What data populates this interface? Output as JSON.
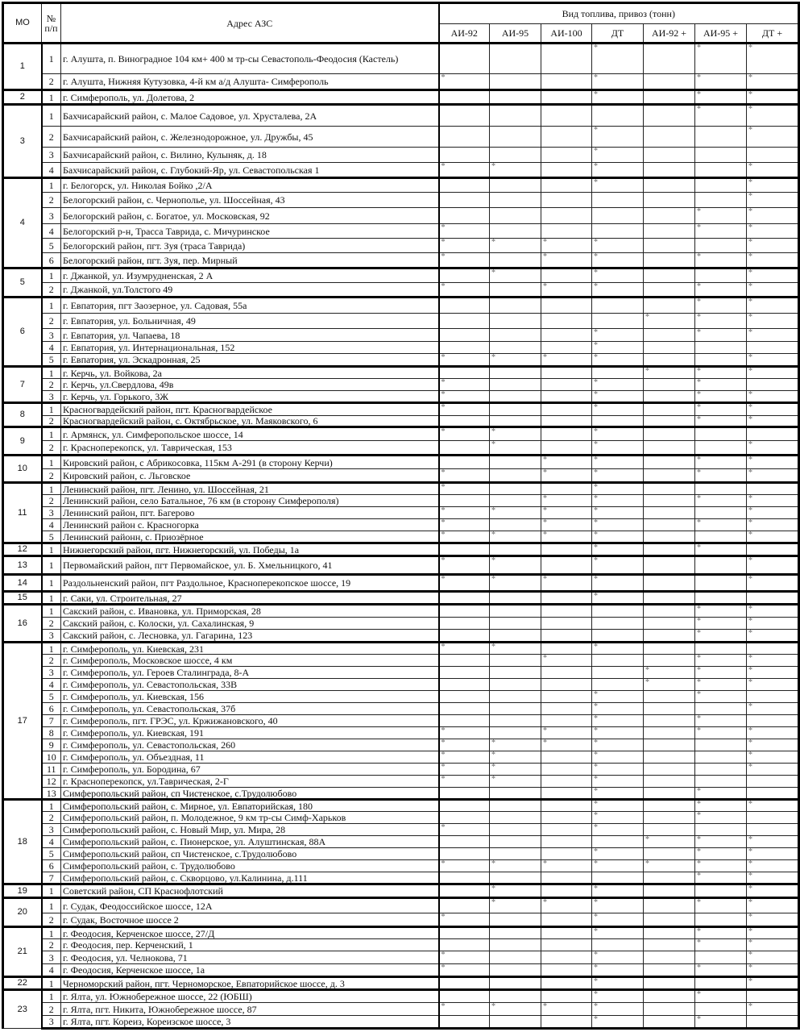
{
  "header": {
    "mo": "МО",
    "num": "№ п/п",
    "address": "Адрес АЗС",
    "fuel_group": "Вид топлива, привоз (тонн)",
    "fuel_types": [
      "АИ-92",
      "АИ-95",
      "АИ-100",
      "ДТ",
      "АИ-92 +",
      "АИ-95 +",
      "ДТ +"
    ]
  },
  "groups": [
    {
      "mo": "1",
      "stations": [
        {
          "n": "1",
          "address": "г. Алушта, п. Виноградное 104 км+ 400 м тр-сы Севастополь-Феодосия (Кастель)",
          "fuel": [
            "",
            "",
            "",
            "*",
            "",
            "*",
            "*"
          ]
        },
        {
          "n": "2",
          "address": "г. Алушта, Нижняя Кутузовка, 4-й км а/д Алушта- Симферополь",
          "fuel": [
            "*",
            "",
            "",
            "*",
            "",
            "*",
            "*"
          ]
        }
      ]
    },
    {
      "mo": "2",
      "stations": [
        {
          "n": "1",
          "address": "г. Симферополь, ул. Долетова, 2",
          "fuel": [
            "",
            "",
            "",
            "*",
            "",
            "*",
            "*"
          ]
        }
      ]
    },
    {
      "mo": "3",
      "stations": [
        {
          "n": "1",
          "address": "Бахчисарайский район, с. Малое Садовое, ул. Хрусталева, 2А",
          "fuel": [
            "",
            "",
            "",
            "",
            "",
            "*",
            "*"
          ]
        },
        {
          "n": "2",
          "address": "Бахчисарайский район, с. Железнодорожное, ул. Дружбы, 45",
          "fuel": [
            "",
            "",
            "",
            "*",
            "",
            "",
            "*"
          ]
        },
        {
          "n": "3",
          "address": "Бахчисарайский район, с. Вилино, Кулыняк, д. 18",
          "fuel": [
            "",
            "",
            "",
            "*",
            "",
            "",
            ""
          ]
        },
        {
          "n": "4",
          "address": "Бахчисарайский район, с. Глубокий-Яр, ул. Севастопольская 1",
          "fuel": [
            "*",
            "*",
            "",
            "*",
            "",
            "",
            "*"
          ]
        }
      ]
    },
    {
      "mo": "4",
      "stations": [
        {
          "n": "1",
          "address": "г. Белогорск, ул. Николая Бойко ,2/А",
          "fuel": [
            "",
            "",
            "",
            "*",
            "",
            "",
            "*"
          ]
        },
        {
          "n": "2",
          "address": "Белогорский район, с. Чернополье, ул. Шоссейная, 43",
          "fuel": [
            "",
            "",
            "",
            "",
            "",
            "",
            "*"
          ]
        },
        {
          "n": "3",
          "address": "Белогорский район, с. Богатое, ул. Московская, 92",
          "fuel": [
            "",
            "",
            "",
            "",
            "",
            "*",
            "*"
          ]
        },
        {
          "n": "4",
          "address": "Белогорский р-н, Трасса Таврида, с. Мичуринское",
          "fuel": [
            "*",
            "",
            "",
            "",
            "",
            "*",
            "*"
          ]
        },
        {
          "n": "5",
          "address": "Белогорский район, пгт. Зуя (траса Таврида)",
          "fuel": [
            "*",
            "*",
            "*",
            "*",
            "",
            "",
            "*"
          ]
        },
        {
          "n": "6",
          "address": "Белогорский район, пгт. Зуя, пер. Мирный",
          "fuel": [
            "*",
            "",
            "*",
            "*",
            "",
            "*",
            "*"
          ]
        }
      ]
    },
    {
      "mo": "5",
      "stations": [
        {
          "n": "1",
          "address": "г. Джанкой, ул. Изумрудненская, 2 А",
          "fuel": [
            "",
            "*",
            "",
            "*",
            "",
            "",
            "*"
          ]
        },
        {
          "n": "2",
          "address": "г. Джанкой, ул.Толстого 49",
          "fuel": [
            "*",
            "",
            "*",
            "*",
            "",
            "*",
            "*"
          ]
        }
      ]
    },
    {
      "mo": "6",
      "stations": [
        {
          "n": "1",
          "address": "г. Евпатория, пгт Заозерное, ул. Садовая, 55а",
          "fuel": [
            "",
            "",
            "",
            "",
            "",
            "*",
            "*"
          ]
        },
        {
          "n": "2",
          "address": "г. Евпатория, ул. Больничная, 49",
          "fuel": [
            "",
            "",
            "",
            "",
            "*",
            "*",
            "*"
          ]
        },
        {
          "n": "3",
          "address": "г. Евпатория, ул. Чапаева, 18",
          "fuel": [
            "",
            "",
            "",
            "*",
            "",
            "*",
            "*"
          ]
        },
        {
          "n": "4",
          "address": "г. Евпатория, ул. Интернациональная, 152",
          "fuel": [
            "",
            "",
            "",
            "*",
            "",
            "",
            ""
          ]
        },
        {
          "n": "5",
          "address": "г. Евпатория, ул. Эскадронная, 25",
          "fuel": [
            "*",
            "*",
            "*",
            "*",
            "",
            "",
            "*"
          ]
        }
      ]
    },
    {
      "mo": "7",
      "stations": [
        {
          "n": "1",
          "address": "г. Керчь, ул. Войкова, 2а",
          "fuel": [
            "",
            "",
            "",
            "",
            "*",
            "*",
            "*"
          ]
        },
        {
          "n": "2",
          "address": "г. Керчь, ул.Свердлова, 49в",
          "fuel": [
            "*",
            "",
            "",
            "*",
            "",
            "*",
            ""
          ]
        },
        {
          "n": "3",
          "address": "г. Керчь, ул. Горького, 3Ж",
          "fuel": [
            "*",
            "",
            "",
            "*",
            "",
            "*",
            "*"
          ]
        }
      ]
    },
    {
      "mo": "8",
      "stations": [
        {
          "n": "1",
          "address": "Красногвардейский район, пгт. Красногвардейское",
          "fuel": [
            "*",
            "",
            "",
            "*",
            "",
            "*",
            "*"
          ]
        },
        {
          "n": "2",
          "address": "Красногвардейский район, с. Октябрьское, ул. Маяковского, 6",
          "fuel": [
            "",
            "",
            "",
            "",
            "",
            "*",
            "*"
          ]
        }
      ]
    },
    {
      "mo": "9",
      "stations": [
        {
          "n": "1",
          "address": "г. Армянск, ул. Симферопольское шоссе, 14",
          "fuel": [
            "*",
            "*",
            "",
            "*",
            "",
            "",
            ""
          ]
        },
        {
          "n": "2",
          "address": "г. Красноперекопск, ул. Таврическая, 153",
          "fuel": [
            "",
            "*",
            "",
            "*",
            "",
            "",
            "*"
          ]
        }
      ]
    },
    {
      "mo": "10",
      "stations": [
        {
          "n": "1",
          "address": "Кировский район, с Абрикосовка, 115км А-291 (в сторону Керчи)",
          "fuel": [
            "",
            "",
            "*",
            "*",
            "",
            "*",
            "*"
          ]
        },
        {
          "n": "2",
          "address": "Кировский район, с. Льговское",
          "fuel": [
            "*",
            "",
            "*",
            "*",
            "",
            "*",
            "*"
          ]
        }
      ]
    },
    {
      "mo": "11",
      "stations": [
        {
          "n": "1",
          "address": "Ленинский район, пгт. Ленино, ул. Шоссейная, 21",
          "fuel": [
            "*",
            "",
            "",
            "*",
            "",
            "",
            ""
          ]
        },
        {
          "n": "2",
          "address": "Ленинский район, село Батальное, 76 км (в сторону Симферополя)",
          "fuel": [
            "",
            "",
            "*",
            "*",
            "",
            "*",
            "*"
          ]
        },
        {
          "n": "3",
          "address": "Ленинский район, пгт. Багерово",
          "fuel": [
            "*",
            "*",
            "*",
            "*",
            "",
            "",
            "*"
          ]
        },
        {
          "n": "4",
          "address": "Ленинский район с. Красногорка",
          "fuel": [
            "*",
            "",
            "*",
            "*",
            "",
            "*",
            "*"
          ]
        },
        {
          "n": "5",
          "address": "Ленинский районн, с. Приозёрное",
          "fuel": [
            "*",
            "*",
            "*",
            "*",
            "",
            "",
            "*"
          ]
        }
      ]
    },
    {
      "mo": "12",
      "stations": [
        {
          "n": "1",
          "address": "Нижнегорский район, пгт. Нижнегорский, ул. Победы, 1а",
          "fuel": [
            "",
            "",
            "",
            "*",
            "",
            "*",
            ""
          ]
        }
      ]
    },
    {
      "mo": "13",
      "stations": [
        {
          "n": "1",
          "address": "Первомайский район, пгт Первомайское, ул. Б. Хмельницкого, 41",
          "fuel": [
            "*",
            "*",
            "",
            "*",
            "",
            "",
            "*"
          ]
        }
      ]
    },
    {
      "mo": "14",
      "stations": [
        {
          "n": "1",
          "address": "Раздольненский район, пгт Раздольное, Красноперекопское шоссе, 19",
          "fuel": [
            "*",
            "*",
            "*",
            "*",
            "",
            "",
            "*"
          ]
        }
      ]
    },
    {
      "mo": "15",
      "stations": [
        {
          "n": "1",
          "address": "г. Саки, ул. Строительная, 27",
          "fuel": [
            "",
            "",
            "",
            "*",
            "",
            "",
            ""
          ]
        }
      ]
    },
    {
      "mo": "16",
      "stations": [
        {
          "n": "1",
          "address": "Сакский район, с. Ивановка, ул. Приморская, 28",
          "fuel": [
            "",
            "",
            "",
            "",
            "",
            "*",
            "*"
          ]
        },
        {
          "n": "2",
          "address": "Сакский район, с. Колоски, ул. Сахалинская, 9",
          "fuel": [
            "",
            "",
            "",
            "",
            "",
            "*",
            "*"
          ]
        },
        {
          "n": "3",
          "address": "Сакский район, с. Лесновка, ул. Гагарина, 123",
          "fuel": [
            "",
            "",
            "",
            "",
            "",
            "*",
            "*"
          ]
        }
      ]
    },
    {
      "mo": "17",
      "stations": [
        {
          "n": "1",
          "address": "г. Симферополь, ул. Киевская, 231",
          "fuel": [
            "*",
            "*",
            "",
            "*",
            "",
            "",
            ""
          ]
        },
        {
          "n": "2",
          "address": "г. Симферополь, Московское шоссе, 4 км",
          "fuel": [
            "",
            "",
            "*",
            "",
            "",
            "*",
            "*"
          ]
        },
        {
          "n": "3",
          "address": "г. Симферополь, ул. Героев Сталинграда, 8-А",
          "fuel": [
            "",
            "",
            "",
            "",
            "*",
            "*",
            "*"
          ]
        },
        {
          "n": "4",
          "address": "г. Симферополь, ул. Севастопольская, 33В",
          "fuel": [
            "",
            "",
            "",
            "",
            "*",
            "*",
            "*"
          ]
        },
        {
          "n": "5",
          "address": "г. Симферополь, ул. Киевская, 156",
          "fuel": [
            "",
            "",
            "",
            "*",
            "",
            "*",
            ""
          ]
        },
        {
          "n": "6",
          "address": "г. Симферополь, ул. Севастопольская, 37б",
          "fuel": [
            "",
            "",
            "",
            "*",
            "",
            "",
            "*"
          ]
        },
        {
          "n": "7",
          "address": "г. Симферополь, пгт. ГРЭС, ул. Кржижановского, 40",
          "fuel": [
            "",
            "",
            "",
            "*",
            "",
            "*",
            ""
          ]
        },
        {
          "n": "8",
          "address": "г. Симферополь, ул. Киевская, 191",
          "fuel": [
            "*",
            "",
            "*",
            "*",
            "",
            "*",
            "*"
          ]
        },
        {
          "n": "9",
          "address": "г. Симферополь, ул. Севастопольская, 260",
          "fuel": [
            "*",
            "*",
            "*",
            "*",
            "",
            "",
            "*"
          ]
        },
        {
          "n": "10",
          "address": "г. Симферополь, ул. Объездная, 11",
          "fuel": [
            "*",
            "*",
            "",
            "*",
            "",
            "",
            "*"
          ]
        },
        {
          "n": "11",
          "address": "г. Симферополь, ул. Бородина, 67",
          "fuel": [
            "*",
            "*",
            "",
            "*",
            "",
            "",
            "*"
          ]
        },
        {
          "n": "12",
          "address": "г. Красноперекопск, ул.Таврическая, 2-Г",
          "fuel": [
            "*",
            "*",
            "",
            "*",
            "",
            "",
            ""
          ]
        },
        {
          "n": "13",
          "address": "Симферопольский район, сп Чистенское, с.Трудолюбово",
          "fuel": [
            "",
            "",
            "",
            "*",
            "",
            "*",
            ""
          ]
        }
      ]
    },
    {
      "mo": "18",
      "stations": [
        {
          "n": "1",
          "address": "Симферопольский район, с. Мирное, ул. Евпаторийская, 180",
          "fuel": [
            "",
            "",
            "",
            "*",
            "",
            "*",
            "*"
          ]
        },
        {
          "n": "2",
          "address": "Симферопольский район, п. Молодежное, 9 км тр-сы Симф-Харьков",
          "fuel": [
            "",
            "",
            "",
            "*",
            "",
            "*",
            ""
          ]
        },
        {
          "n": "3",
          "address": "Симферопольский район, с. Новый Мир, ул. Мира, 28",
          "fuel": [
            "*",
            "",
            "",
            "*",
            "",
            "",
            ""
          ]
        },
        {
          "n": "4",
          "address": "Симферопольский район, с. Пионерское, ул. Алуштинская, 88А",
          "fuel": [
            "",
            "",
            "",
            "",
            "*",
            "*",
            "*"
          ]
        },
        {
          "n": "5",
          "address": "Симферопольский район, сп Чистенское, с.Трудолюбово",
          "fuel": [
            "",
            "",
            "",
            "*",
            "",
            "*",
            "*"
          ]
        },
        {
          "n": "6",
          "address": "Симферопольский район, с. Трудолюбово",
          "fuel": [
            "*",
            "*",
            "*",
            "*",
            "*",
            "*",
            "*"
          ]
        },
        {
          "n": "7",
          "address": "Симферопольский район, с. Скворцово, ул.Калинина, д.111",
          "fuel": [
            "",
            "",
            "",
            "",
            "",
            "*",
            "*"
          ]
        }
      ]
    },
    {
      "mo": "19",
      "stations": [
        {
          "n": "1",
          "address": "Советский район, СП Краснофлотский",
          "fuel": [
            "",
            "*",
            "",
            "*",
            "",
            "",
            "*"
          ]
        }
      ]
    },
    {
      "mo": "20",
      "stations": [
        {
          "n": "1",
          "address": "г. Судак, Феодоссийское шоссе, 12А",
          "fuel": [
            "",
            "*",
            "*",
            "*",
            "",
            "*",
            "*"
          ]
        },
        {
          "n": "2",
          "address": "г. Судак, Восточное шоссе 2",
          "fuel": [
            "*",
            "",
            "",
            "*",
            "",
            "",
            "*"
          ]
        }
      ]
    },
    {
      "mo": "21",
      "stations": [
        {
          "n": "1",
          "address": "г. Феодосия, Керченское шоссе, 27/Д",
          "fuel": [
            "",
            "",
            "",
            "*",
            "",
            "*",
            "*"
          ]
        },
        {
          "n": "2",
          "address": "г. Феодосия, пер. Керченский, 1",
          "fuel": [
            "",
            "",
            "",
            "",
            "",
            "*",
            "*"
          ]
        },
        {
          "n": "3",
          "address": "г. Феодосия, ул. Челнокова, 71",
          "fuel": [
            "*",
            "",
            "",
            "*",
            "",
            "",
            "*"
          ]
        },
        {
          "n": "4",
          "address": "г. Феодосия, Керченское шоссе, 1а",
          "fuel": [
            "*",
            "",
            "",
            "*",
            "",
            "*",
            "*"
          ]
        }
      ]
    },
    {
      "mo": "22",
      "stations": [
        {
          "n": "1",
          "address": "Черноморский район, пгт. Черноморское, Евпаторийское шоссе, д. 3",
          "fuel": [
            "",
            "",
            "",
            "*",
            "",
            "",
            "*"
          ]
        }
      ]
    },
    {
      "mo": "23",
      "stations": [
        {
          "n": "1",
          "address": "г. Ялта, ул. Южнобережное шоссе, 22 (ЮБШ)",
          "fuel": [
            "",
            "",
            "",
            "*",
            "",
            "*",
            ""
          ]
        },
        {
          "n": "2",
          "address": "г. Ялта, пгт. Никита, Южнобережное шоссе, 87",
          "fuel": [
            "*",
            "*",
            "*",
            "*",
            "",
            "",
            "*"
          ]
        },
        {
          "n": "3",
          "address": "г. Ялта, пгт. Кореиз, Кореизское шоссе, 3",
          "fuel": [
            "",
            "",
            "",
            "*",
            "",
            "*",
            ""
          ]
        }
      ]
    }
  ]
}
